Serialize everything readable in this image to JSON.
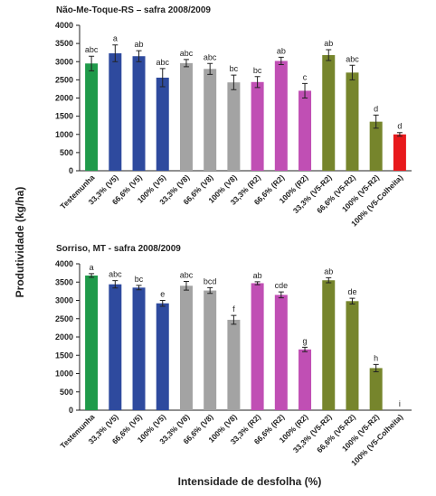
{
  "ylabel": "Produtividade (kg/ha)",
  "xlabel": "Intensidade de desfolha (%)",
  "chart_data": [
    {
      "type": "bar",
      "title": "Não-Me-Toque-RS – safra 2008/2009",
      "categories": [
        "Testemunha",
        "33,3% (V5)",
        "66,6% (V5)",
        "100% (V5)",
        "33,3% (V8)",
        "66,6% (V8)",
        "100% (V8)",
        "33,3% (R2)",
        "66,6% (R2)",
        "100% (R2)",
        "33,3% (V5-R2)",
        "66,6% (V5-R2)",
        "100% (V5-R2)",
        "100% (V5-Colheita)"
      ],
      "values": [
        2950,
        3230,
        3150,
        2560,
        2960,
        2800,
        2430,
        2440,
        3020,
        2200,
        3180,
        2700,
        1350,
        1000
      ],
      "errors": [
        200,
        230,
        150,
        250,
        100,
        150,
        200,
        150,
        100,
        200,
        150,
        200,
        180,
        50
      ],
      "annotations": [
        "abc",
        "a",
        "ab",
        "abc",
        "abc",
        "abc",
        "bc",
        "bc",
        "ab",
        "c",
        "ab",
        "abc",
        "d",
        "d"
      ],
      "colors": [
        "#1f9a4a",
        "#2e4a9e",
        "#2e4a9e",
        "#2e4a9e",
        "#a3a3a3",
        "#a3a3a3",
        "#a3a3a3",
        "#c04fb4",
        "#c04fb4",
        "#c04fb4",
        "#76852c",
        "#76852c",
        "#76852c",
        "#e8191c"
      ],
      "ylim": [
        0,
        4000
      ],
      "yticks": [
        0,
        500,
        1000,
        1500,
        2000,
        2500,
        3000,
        3500,
        4000
      ]
    },
    {
      "type": "bar",
      "title": "Sorriso, MT - safra 2008/2009",
      "categories": [
        "Testemunha",
        "33,3% (V5)",
        "66,6% (V5)",
        "100% (V5)",
        "33,3% (V8)",
        "66,6% (V8)",
        "100% (V8)",
        "33,3% (R2)",
        "66,6% (R2)",
        "100% (R2)",
        "33,3% (V5-R2)",
        "66,6% (V5-R2)",
        "100% (V5-R2)",
        "100% (V5-Colheita)"
      ],
      "values": [
        3680,
        3440,
        3350,
        2920,
        3400,
        3270,
        2470,
        3470,
        3150,
        1660,
        3550,
        2980,
        1150,
        0
      ],
      "errors": [
        50,
        100,
        60,
        80,
        120,
        80,
        120,
        40,
        80,
        60,
        70,
        80,
        100,
        0
      ],
      "annotations": [
        "a",
        "abc",
        "bc",
        "e",
        "abc",
        "bcd",
        "f",
        "ab",
        "cde",
        "g",
        "ab",
        "de",
        "h",
        "i"
      ],
      "colors": [
        "#1f9a4a",
        "#2e4a9e",
        "#2e4a9e",
        "#2e4a9e",
        "#a3a3a3",
        "#a3a3a3",
        "#a3a3a3",
        "#c04fb4",
        "#c04fb4",
        "#c04fb4",
        "#76852c",
        "#76852c",
        "#76852c",
        "#e8191c"
      ],
      "ylim": [
        0,
        4000
      ],
      "yticks": [
        0,
        500,
        1000,
        1500,
        2000,
        2500,
        3000,
        3500,
        4000
      ]
    }
  ]
}
